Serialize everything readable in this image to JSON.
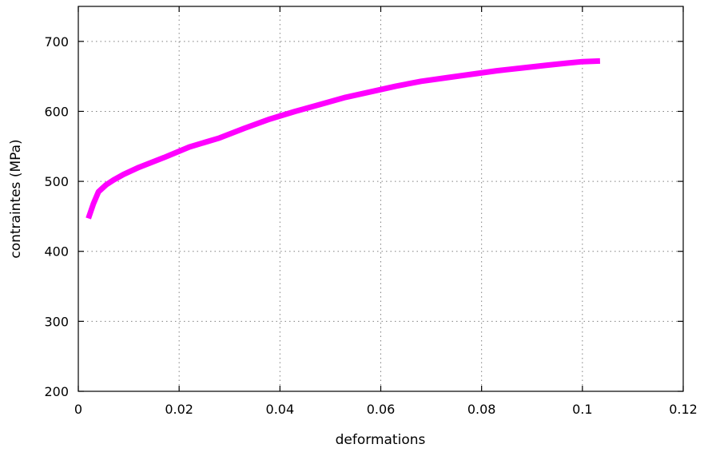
{
  "chart_data": {
    "type": "line",
    "xlabel": "deformations",
    "ylabel": "contraintes (MPa)",
    "xlim": [
      0,
      0.12
    ],
    "ylim": [
      200,
      750
    ],
    "xticks": [
      0,
      0.02,
      0.04,
      0.06,
      0.08,
      0.1,
      0.12
    ],
    "xtick_labels": [
      "0",
      "0.02",
      "0.04",
      "0.06",
      "0.08",
      "0.1",
      "0.12"
    ],
    "yticks": [
      200,
      300,
      400,
      500,
      600,
      700
    ],
    "ytick_labels": [
      "200",
      "300",
      "400",
      "500",
      "600",
      "700"
    ],
    "grid": true,
    "series": [
      {
        "color": "#ff00ff",
        "x": [
          0.002,
          0.003,
          0.004,
          0.0055,
          0.007,
          0.009,
          0.012,
          0.017,
          0.022,
          0.028,
          0.033,
          0.038,
          0.043,
          0.048,
          0.053,
          0.058,
          0.063,
          0.068,
          0.073,
          0.078,
          0.083,
          0.088,
          0.093,
          0.097,
          0.1,
          0.1035
        ],
        "y": [
          447,
          468,
          485,
          495,
          502,
          510,
          520,
          534,
          549,
          562,
          576,
          589,
          600,
          610,
          620,
          628,
          636,
          643,
          648,
          653,
          658,
          662,
          666,
          669,
          671,
          672
        ]
      }
    ]
  }
}
